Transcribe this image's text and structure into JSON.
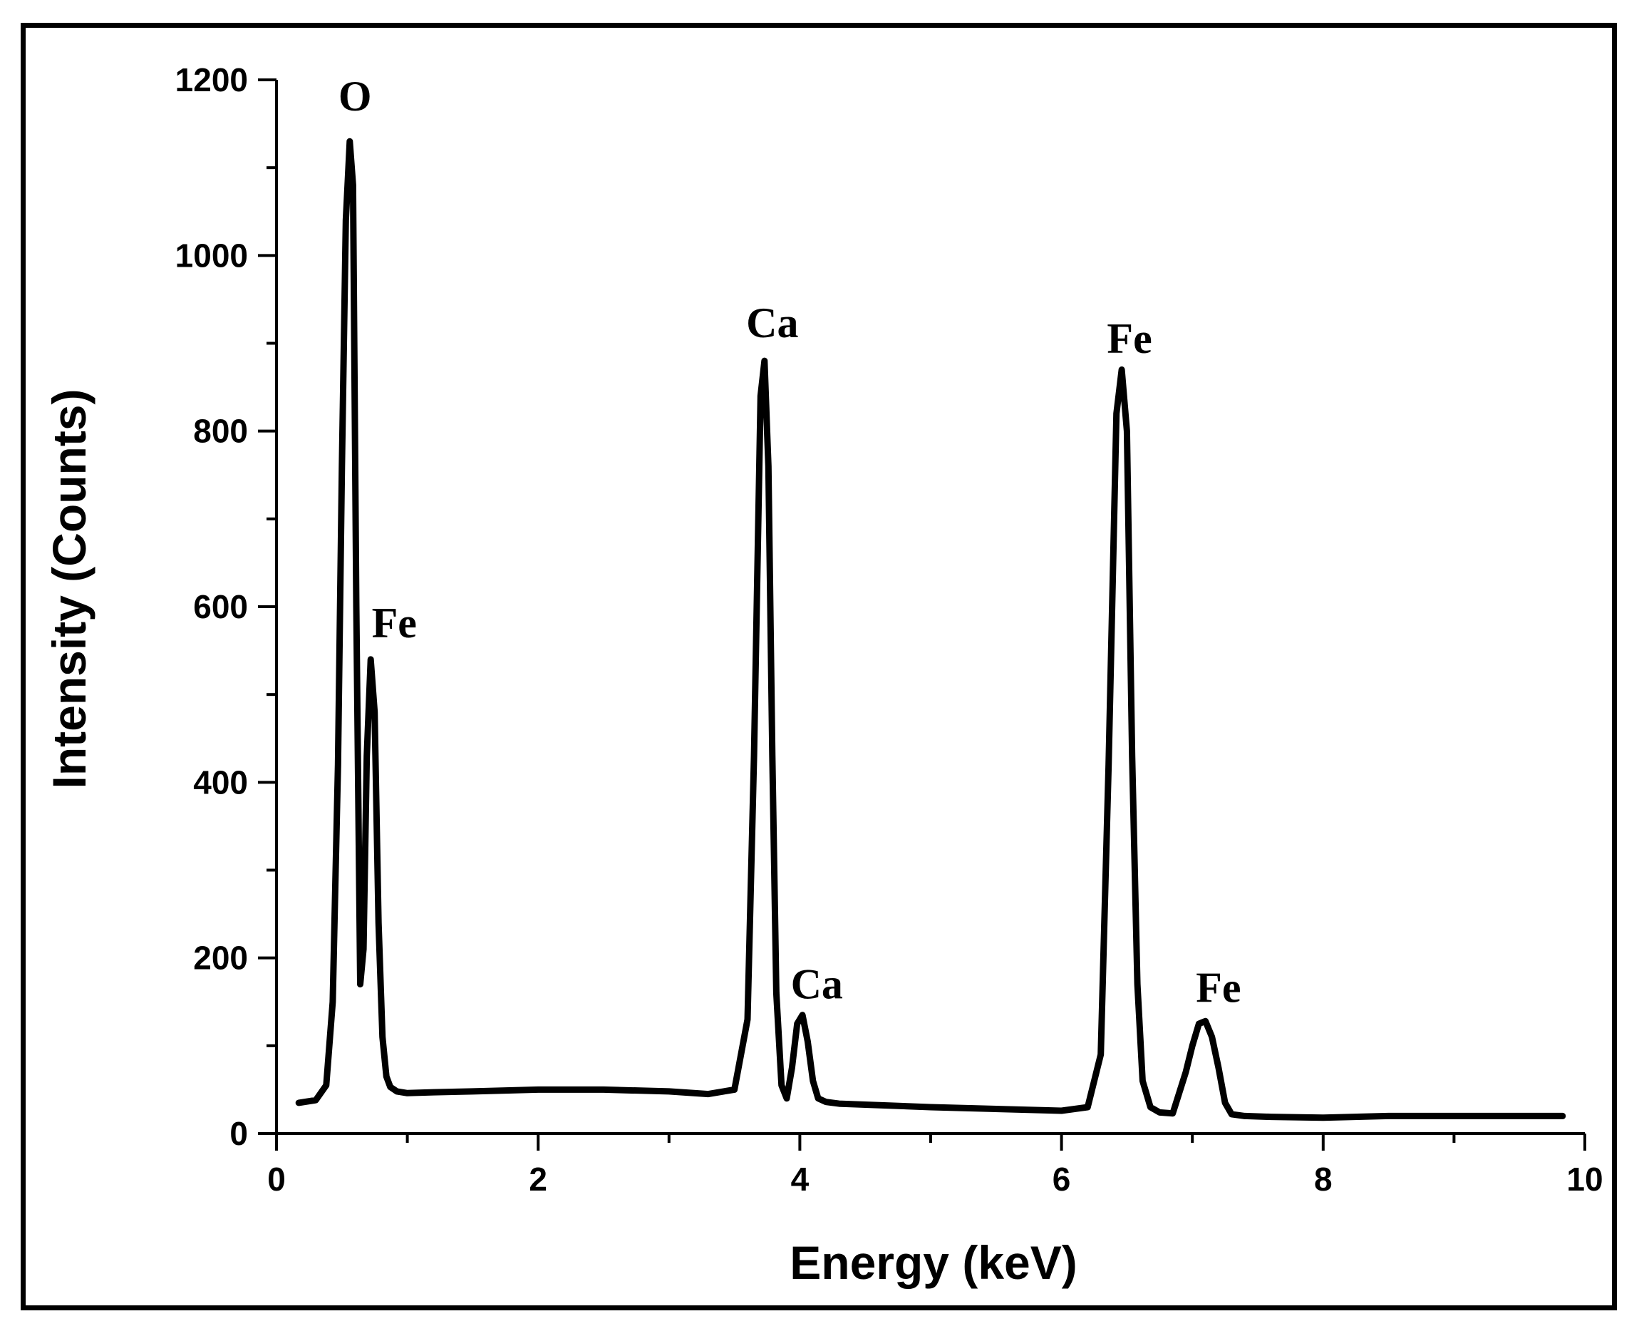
{
  "chart_data": {
    "type": "line",
    "title": "",
    "xlabel": "Energy (keV)",
    "ylabel": "Intensity (Counts)",
    "xlim": [
      0,
      10
    ],
    "ylim": [
      0,
      1200
    ],
    "xticks": [
      "0",
      "2",
      "4",
      "6",
      "8",
      "10"
    ],
    "yticks": [
      "0",
      "200",
      "400",
      "600",
      "800",
      "1000",
      "1200"
    ],
    "x_minor_step": 1,
    "y_minor_step": 100,
    "grid": false,
    "legend": "none",
    "color": "#000000",
    "series": [
      {
        "x": [
          0.17,
          0.3,
          0.38,
          0.43,
          0.47,
          0.5,
          0.53,
          0.56,
          0.585,
          0.61,
          0.64,
          0.665,
          0.69,
          0.72,
          0.75,
          0.78,
          0.81,
          0.84,
          0.87,
          0.92,
          1.0,
          1.2,
          1.5,
          2.0,
          2.5,
          3.0,
          3.3,
          3.5,
          3.6,
          3.65,
          3.7,
          3.73,
          3.76,
          3.79,
          3.82,
          3.86,
          3.9,
          3.94,
          3.98,
          4.02,
          4.06,
          4.1,
          4.14,
          4.2,
          4.3,
          5.0,
          6.0,
          6.2,
          6.3,
          6.36,
          6.42,
          6.46,
          6.5,
          6.54,
          6.58,
          6.62,
          6.68,
          6.75,
          6.85,
          6.95,
          7.0,
          7.05,
          7.1,
          7.15,
          7.2,
          7.25,
          7.3,
          7.4,
          7.6,
          8.0,
          8.5,
          9.0,
          9.5,
          9.83
        ],
        "y": [
          35,
          38,
          55,
          150,
          420,
          760,
          1040,
          1130,
          1080,
          600,
          170,
          210,
          430,
          540,
          480,
          240,
          110,
          65,
          53,
          48,
          46,
          47,
          48,
          50,
          50,
          48,
          45,
          50,
          130,
          430,
          840,
          880,
          760,
          430,
          160,
          55,
          40,
          75,
          125,
          135,
          105,
          60,
          40,
          36,
          34,
          30,
          26,
          30,
          90,
          420,
          820,
          870,
          800,
          430,
          170,
          60,
          30,
          24,
          23,
          70,
          100,
          125,
          128,
          110,
          75,
          35,
          22,
          20,
          19,
          18,
          20,
          20,
          20,
          20
        ]
      }
    ],
    "annotations": [
      {
        "text": "O",
        "x": 0.6,
        "y": 1165
      },
      {
        "text": "Fe",
        "x": 0.9,
        "y": 565
      },
      {
        "text": "Ca",
        "x": 3.79,
        "y": 907
      },
      {
        "text": "Ca",
        "x": 4.13,
        "y": 154
      },
      {
        "text": "Fe",
        "x": 6.52,
        "y": 889
      },
      {
        "text": "Fe",
        "x": 7.2,
        "y": 150
      }
    ]
  }
}
